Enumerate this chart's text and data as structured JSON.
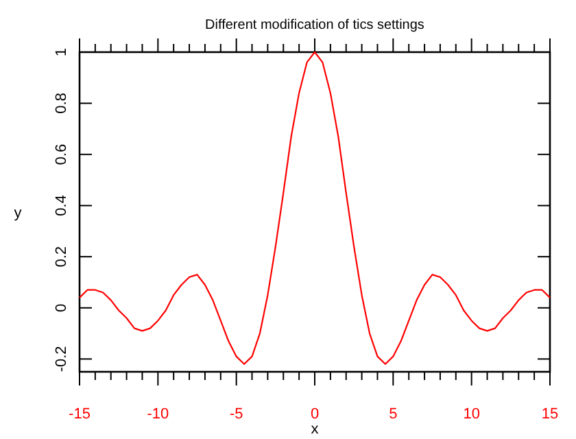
{
  "chart_data": {
    "type": "line",
    "title": "Different modification of tics settings",
    "xlabel": "x",
    "ylabel": "y",
    "x": [
      -15,
      -14.5,
      -14,
      -13.5,
      -13,
      -12.5,
      -12,
      -11.5,
      -11,
      -10.5,
      -10,
      -9.5,
      -9,
      -8.5,
      -8,
      -7.5,
      -7,
      -6.5,
      -6,
      -5.5,
      -5,
      -4.5,
      -4,
      -3.5,
      -3,
      -2.5,
      -2,
      -1.5,
      -1,
      -0.5,
      0,
      0.5,
      1,
      1.5,
      2,
      2.5,
      3,
      3.5,
      4,
      4.5,
      5,
      5.5,
      6,
      6.5,
      7,
      7.5,
      8,
      8.5,
      9,
      9.5,
      10,
      10.5,
      11,
      11.5,
      12,
      12.5,
      13,
      13.5,
      14,
      14.5,
      15
    ],
    "series": [
      {
        "color": "#ff0000",
        "values": [
          0.04,
          0.07,
          0.07,
          0.06,
          0.03,
          -0.01,
          -0.04,
          -0.08,
          -0.09,
          -0.08,
          -0.05,
          -0.01,
          0.05,
          0.09,
          0.12,
          0.13,
          0.09,
          0.03,
          -0.05,
          -0.13,
          -0.19,
          -0.22,
          -0.19,
          -0.1,
          0.05,
          0.24,
          0.45,
          0.67,
          0.84,
          0.96,
          1,
          0.96,
          0.84,
          0.67,
          0.45,
          0.24,
          0.05,
          -0.1,
          -0.19,
          -0.22,
          -0.19,
          -0.13,
          -0.05,
          0.03,
          0.09,
          0.13,
          0.12,
          0.09,
          0.05,
          -0.01,
          -0.05,
          -0.08,
          -0.09,
          -0.08,
          -0.04,
          -0.01,
          0.03,
          0.06,
          0.07,
          0.07,
          0.04
        ]
      }
    ],
    "xlim": [
      -15,
      15
    ],
    "ylim": [
      -0.25,
      1
    ],
    "xticks": [
      -15,
      {
        "value": -14,
        "label": null
      },
      {
        "value": -13,
        "label": null
      },
      {
        "value": -12,
        "label": null
      },
      {
        "value": -11,
        "label": null
      },
      -10,
      {
        "value": -9,
        "label": null
      },
      {
        "value": -8,
        "label": null
      },
      {
        "value": -7,
        "label": null
      },
      {
        "value": -6,
        "label": null
      },
      -5,
      {
        "value": -4,
        "label": null
      },
      {
        "value": -3,
        "label": null
      },
      {
        "value": -2,
        "label": null
      },
      {
        "value": -1,
        "label": null
      },
      0,
      {
        "value": 1,
        "label": null
      },
      {
        "value": 2,
        "label": null
      },
      {
        "value": 3,
        "label": null
      },
      {
        "value": 4,
        "label": null
      },
      5,
      {
        "value": 6,
        "label": null
      },
      {
        "value": 7,
        "label": null
      },
      {
        "value": 8,
        "label": null
      },
      {
        "value": 9,
        "label": null
      },
      10,
      {
        "value": 11,
        "label": null
      },
      {
        "value": 12,
        "label": null
      },
      {
        "value": 13,
        "label": null
      },
      {
        "value": 14,
        "label": null
      },
      15
    ],
    "yticks": [
      -0.2,
      0,
      0.2,
      0.4,
      0.6,
      0.8,
      1
    ],
    "grid": false,
    "marker": "none",
    "line_style": "solid"
  }
}
